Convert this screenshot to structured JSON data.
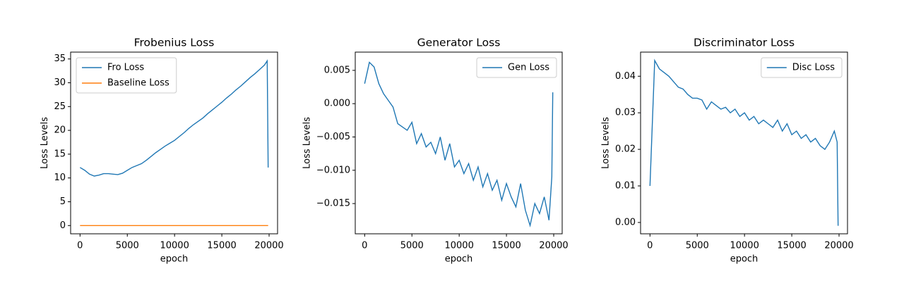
{
  "chart_data": [
    {
      "type": "line",
      "title": "Frobenius Loss",
      "xlabel": "epoch",
      "ylabel": "Loss Levels",
      "x": [
        0,
        500,
        1000,
        1500,
        2000,
        2500,
        3000,
        3500,
        4000,
        4500,
        5000,
        5500,
        6000,
        6500,
        7000,
        7500,
        8000,
        8500,
        9000,
        9500,
        10000,
        10500,
        11000,
        11500,
        12000,
        12500,
        13000,
        13500,
        14000,
        14500,
        15000,
        15500,
        16000,
        16500,
        17000,
        17500,
        18000,
        18500,
        19000,
        19500,
        19800,
        19900
      ],
      "series": [
        {
          "name": "Fro Loss",
          "color": "#1f77b4",
          "values": [
            12.2,
            11.6,
            10.8,
            10.4,
            10.6,
            10.9,
            10.9,
            10.8,
            10.7,
            11.0,
            11.6,
            12.2,
            12.6,
            13.0,
            13.7,
            14.5,
            15.3,
            16.0,
            16.7,
            17.3,
            17.9,
            18.7,
            19.5,
            20.4,
            21.2,
            21.9,
            22.6,
            23.5,
            24.3,
            25.1,
            25.9,
            26.8,
            27.6,
            28.5,
            29.3,
            30.2,
            31.1,
            31.9,
            32.8,
            33.7,
            34.6,
            12.2
          ]
        },
        {
          "name": "Baseline Loss",
          "color": "#ff7f0e",
          "values": [
            0,
            0,
            0,
            0,
            0,
            0,
            0,
            0,
            0,
            0,
            0,
            0,
            0,
            0,
            0,
            0,
            0,
            0,
            0,
            0,
            0,
            0,
            0,
            0,
            0,
            0,
            0,
            0,
            0,
            0,
            0,
            0,
            0,
            0,
            0,
            0,
            0,
            0,
            0,
            0,
            0,
            0
          ]
        }
      ],
      "xlim": [
        -995,
        20895
      ],
      "ylim": [
        -1.735,
        36.44
      ],
      "xticks": [
        0,
        5000,
        10000,
        15000,
        20000
      ],
      "yticks": [
        0,
        5,
        10,
        15,
        20,
        25,
        30,
        35
      ],
      "legend": "upper left"
    },
    {
      "type": "line",
      "title": "Generator Loss",
      "xlabel": "epoch",
      "ylabel": "Loss Levels",
      "x": [
        0,
        500,
        1000,
        1500,
        2000,
        2500,
        3000,
        3500,
        4000,
        4500,
        5000,
        5500,
        6000,
        6500,
        7000,
        7500,
        8000,
        8500,
        9000,
        9500,
        10000,
        10500,
        11000,
        11500,
        12000,
        12500,
        13000,
        13500,
        14000,
        14500,
        15000,
        15500,
        16000,
        16500,
        17000,
        17500,
        18000,
        18500,
        19000,
        19500,
        19800,
        19900
      ],
      "series": [
        {
          "name": "Gen Loss",
          "color": "#1f77b4",
          "values": [
            0.003,
            0.0062,
            0.0055,
            0.003,
            0.0015,
            0.0005,
            -0.0005,
            -0.003,
            -0.0035,
            -0.004,
            -0.0028,
            -0.006,
            -0.0045,
            -0.0065,
            -0.0058,
            -0.0075,
            -0.005,
            -0.0085,
            -0.006,
            -0.0095,
            -0.0085,
            -0.0105,
            -0.009,
            -0.0115,
            -0.0095,
            -0.0125,
            -0.0105,
            -0.013,
            -0.0115,
            -0.0145,
            -0.012,
            -0.014,
            -0.0155,
            -0.012,
            -0.016,
            -0.0183,
            -0.015,
            -0.0165,
            -0.014,
            -0.0175,
            -0.011,
            0.0017
          ]
        }
      ],
      "xlim": [
        -995,
        20895
      ],
      "ylim": [
        -0.01954,
        0.00774
      ],
      "xticks": [
        0,
        5000,
        10000,
        15000,
        20000
      ],
      "yticks": [
        {
          "value": -0.015,
          "label": "−0.015"
        },
        {
          "value": -0.01,
          "label": "−0.010"
        },
        {
          "value": -0.005,
          "label": "−0.005"
        },
        {
          "value": 0,
          "label": "0.000"
        },
        0.005
      ],
      "legend": "upper right"
    },
    {
      "type": "line",
      "title": "Discriminator Loss",
      "xlabel": "epoch",
      "ylabel": "Loss Levels",
      "x": [
        0,
        500,
        1000,
        1500,
        2000,
        2500,
        3000,
        3500,
        4000,
        4500,
        5000,
        5500,
        6000,
        6500,
        7000,
        7500,
        8000,
        8500,
        9000,
        9500,
        10000,
        10500,
        11000,
        11500,
        12000,
        12500,
        13000,
        13500,
        14000,
        14500,
        15000,
        15500,
        16000,
        16500,
        17000,
        17500,
        18000,
        18500,
        19000,
        19500,
        19800,
        19900
      ],
      "series": [
        {
          "name": "Disc Loss",
          "color": "#1f77b4",
          "values": [
            0.01,
            0.0443,
            0.042,
            0.041,
            0.04,
            0.0385,
            0.037,
            0.0365,
            0.035,
            0.034,
            0.034,
            0.0335,
            0.031,
            0.033,
            0.032,
            0.031,
            0.0315,
            0.03,
            0.031,
            0.029,
            0.03,
            0.028,
            0.029,
            0.027,
            0.028,
            0.027,
            0.026,
            0.028,
            0.025,
            0.027,
            0.024,
            0.025,
            0.023,
            0.024,
            0.022,
            0.023,
            0.021,
            0.02,
            0.022,
            0.025,
            0.022,
            -0.0009
          ]
        }
      ],
      "xlim": [
        -995,
        20895
      ],
      "ylim": [
        -0.0031,
        0.0466
      ],
      "xticks": [
        0,
        5000,
        10000,
        15000,
        20000
      ],
      "yticks": [
        {
          "value": 0,
          "label": "0.00"
        },
        0.01,
        0.02,
        0.03,
        0.04
      ],
      "legend": "upper right"
    }
  ]
}
